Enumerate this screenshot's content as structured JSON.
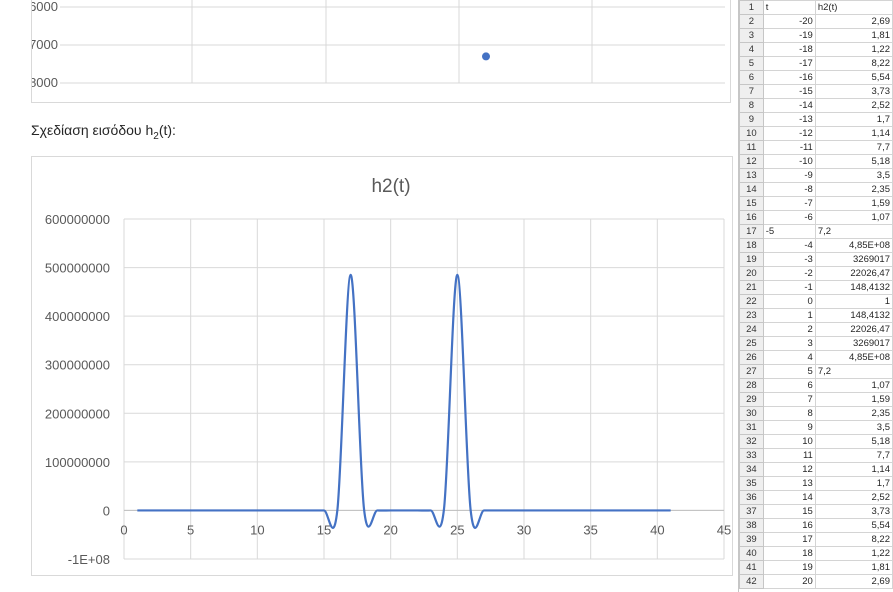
{
  "caption": {
    "text": "Σχεδίαση εισόδου h",
    "sub": "2",
    "suffix": "(t):"
  },
  "top_chart": {
    "y_ticks": [
      "-6000",
      "-7000",
      "-8000"
    ],
    "y_values": [
      -6000,
      -7000,
      -8000
    ],
    "point": {
      "x": 27,
      "y": -7300
    },
    "color": "#4472c4"
  },
  "chart_data": {
    "type": "line",
    "title": "h2(t)",
    "x_ticks": [
      "0",
      "5",
      "10",
      "15",
      "20",
      "25",
      "30",
      "35",
      "40",
      "45"
    ],
    "y_ticks": [
      "600000000",
      "500000000",
      "400000000",
      "300000000",
      "200000000",
      "100000000",
      "0",
      "-1E+08"
    ],
    "xlim": [
      0,
      45
    ],
    "ylim": [
      -100000000,
      600000000
    ],
    "grid": true,
    "series_color": "#4472c4",
    "series": [
      {
        "x": [
          1,
          2,
          3,
          4,
          5,
          6,
          7,
          8,
          9,
          10,
          11,
          12,
          13,
          14,
          15,
          16,
          17,
          18,
          19,
          20,
          21,
          22,
          23,
          24,
          25,
          26,
          27,
          28,
          29,
          30,
          31,
          32,
          33,
          34,
          35,
          36,
          37,
          38,
          39,
          40,
          41
        ],
        "values": [
          2.69,
          1.81,
          1.22,
          8.22,
          5.54,
          3.73,
          2.52,
          1.7,
          1.14,
          7.7,
          5.18,
          3.5,
          2.35,
          1.59,
          1.07,
          7.2,
          485000000,
          3269017,
          22026.47,
          148.4132,
          1,
          148.4132,
          22026.47,
          3269017,
          485000000,
          7.2,
          1.07,
          1.59,
          2.35,
          3.5,
          5.18,
          7.7,
          1.14,
          1.7,
          2.52,
          3.73,
          5.54,
          8.22,
          1.22,
          1.81,
          2.69
        ]
      }
    ]
  },
  "sheet": {
    "header": [
      "t",
      "h2(t)"
    ],
    "rows": [
      [
        "-20",
        "2,69"
      ],
      [
        "-19",
        "1,81"
      ],
      [
        "-18",
        "1,22"
      ],
      [
        "-17",
        "8,22"
      ],
      [
        "-16",
        "5,54"
      ],
      [
        "-15",
        "3,73"
      ],
      [
        "-14",
        "2,52"
      ],
      [
        "-13",
        "1,7"
      ],
      [
        "-12",
        "1,14"
      ],
      [
        "-11",
        "7,7"
      ],
      [
        "-10",
        "5,18"
      ],
      [
        "-9",
        "3,5"
      ],
      [
        "-8",
        "2,35"
      ],
      [
        "-7",
        "1,59"
      ],
      [
        "-6",
        "1,07"
      ],
      [
        "-5",
        "7,2"
      ],
      [
        "-4",
        "4,85E+08"
      ],
      [
        "-3",
        "3269017"
      ],
      [
        "-2",
        "22026,47"
      ],
      [
        "-1",
        "148,4132"
      ],
      [
        "0",
        "1"
      ],
      [
        "1",
        "148,4132"
      ],
      [
        "2",
        "22026,47"
      ],
      [
        "3",
        "3269017"
      ],
      [
        "4",
        "4,85E+08"
      ],
      [
        "5",
        "7,2"
      ],
      [
        "6",
        "1,07"
      ],
      [
        "7",
        "1,59"
      ],
      [
        "8",
        "2,35"
      ],
      [
        "9",
        "3,5"
      ],
      [
        "10",
        "5,18"
      ],
      [
        "11",
        "7,7"
      ],
      [
        "12",
        "1,14"
      ],
      [
        "13",
        "1,7"
      ],
      [
        "14",
        "2,52"
      ],
      [
        "15",
        "3,73"
      ],
      [
        "16",
        "5,54"
      ],
      [
        "17",
        "8,22"
      ],
      [
        "18",
        "1,22"
      ],
      [
        "19",
        "1,81"
      ],
      [
        "20",
        "2,69"
      ]
    ]
  }
}
